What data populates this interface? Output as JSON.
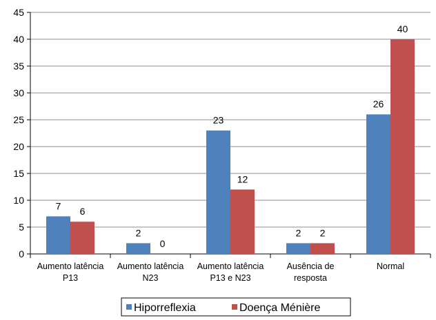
{
  "chart_data": {
    "type": "bar",
    "categories": [
      [
        "Aumento latência",
        "P13"
      ],
      [
        "Aumento latência",
        "N23"
      ],
      [
        "Aumento latência",
        "P13 e N23"
      ],
      [
        "Ausência de",
        "resposta"
      ],
      [
        "Normal"
      ]
    ],
    "series": [
      {
        "name": "Hiporreflexia",
        "color": "#4F81BD",
        "values": [
          7,
          2,
          23,
          2,
          26
        ]
      },
      {
        "name": "Doença Ménière",
        "color": "#C0504D",
        "values": [
          6,
          0,
          12,
          2,
          40
        ]
      }
    ],
    "ylim": [
      0,
      45
    ],
    "yticks": [
      0,
      5,
      10,
      15,
      20,
      25,
      30,
      35,
      40,
      45
    ],
    "data_labels": true,
    "legend_position": "bottom",
    "grid": "horizontal"
  }
}
